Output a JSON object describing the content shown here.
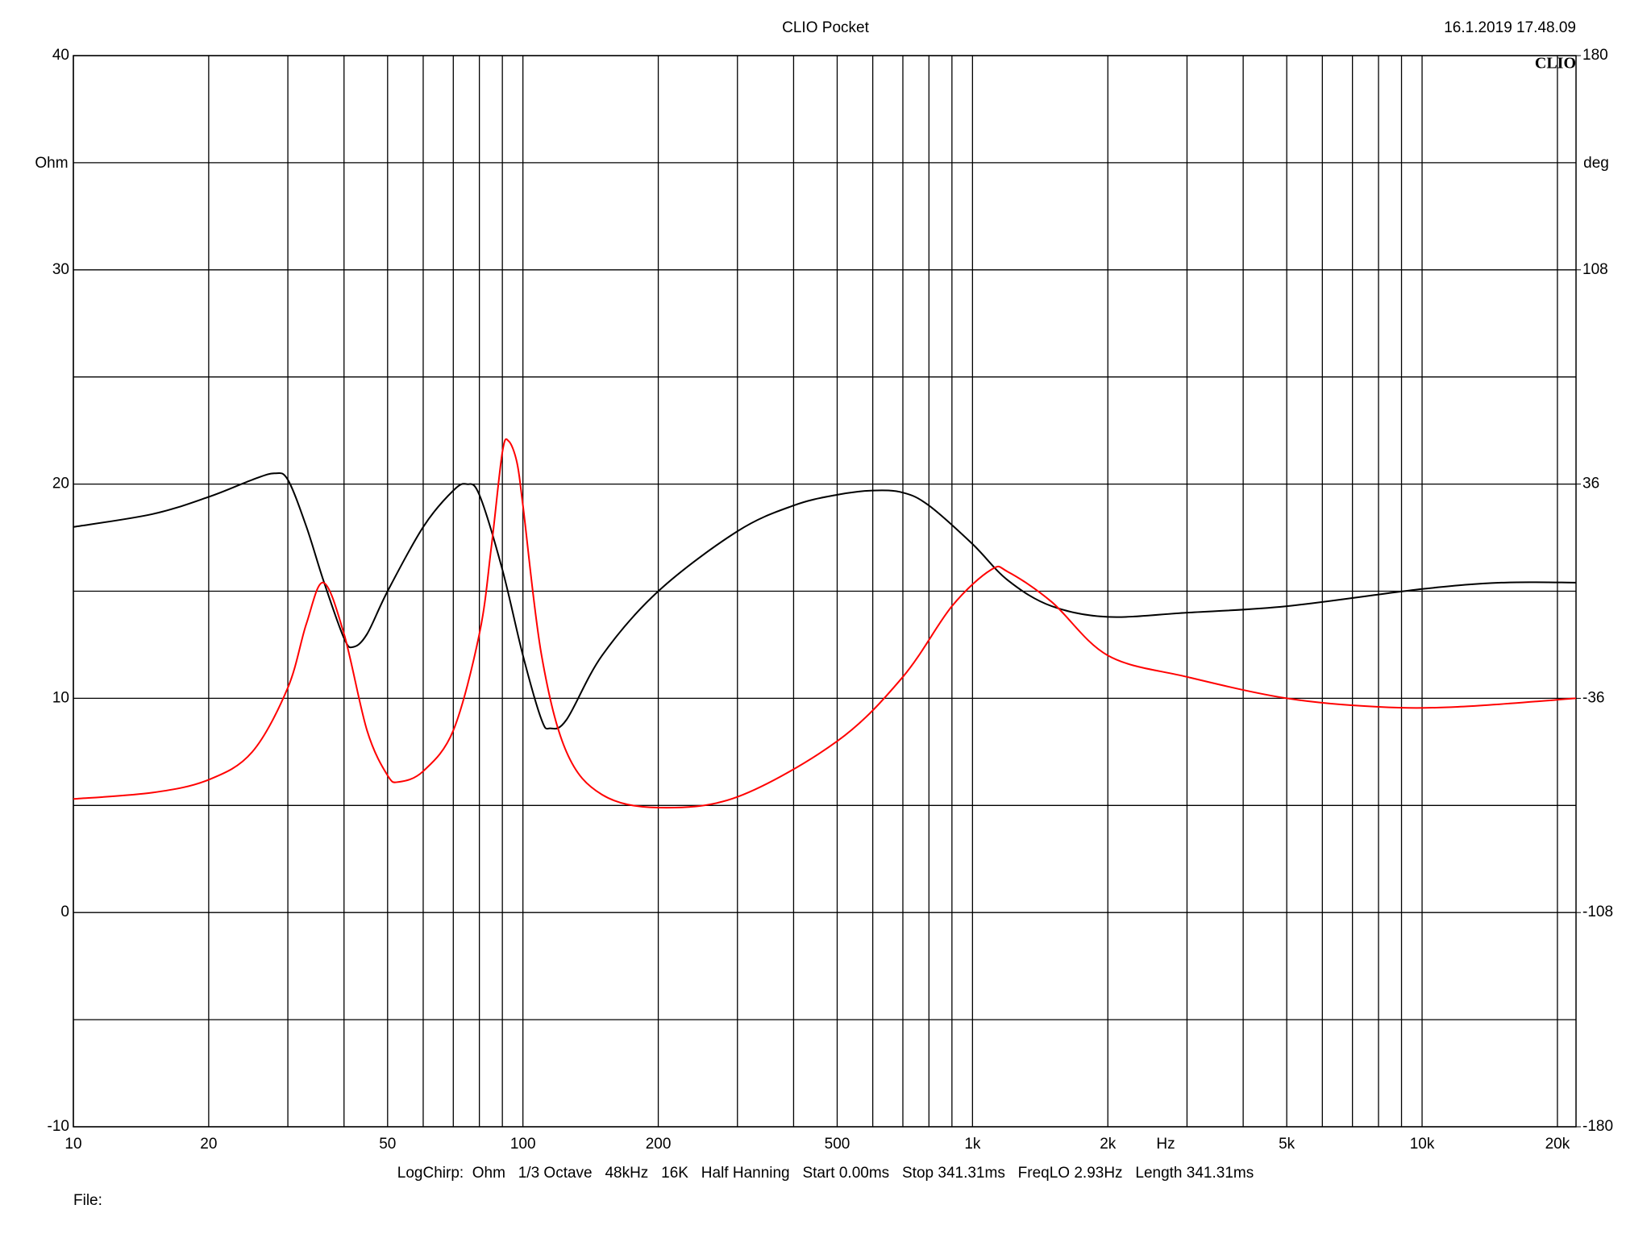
{
  "chart_data": {
    "type": "line",
    "title": "CLIO Pocket",
    "timestamp": "16.1.2019 17.48.09",
    "logo": "CLIO",
    "y_label": "Ohm",
    "y2_label": "deg",
    "x_label": "Hz",
    "footer": "LogChirp:  Ohm   1/3 Octave   48kHz   16K   Half Hanning   Start 0.00ms   Stop 341.31ms   FreqLO 2.93Hz   Length 341.31ms",
    "file_label": "File:",
    "xscale": "log",
    "xlim": [
      10,
      22000
    ],
    "xticks": [
      10,
      20,
      50,
      100,
      200,
      500,
      {
        "value": 1000,
        "label": "1k"
      },
      {
        "value": 2000,
        "label": "2k"
      },
      {
        "value": 5000,
        "label": "5k"
      },
      {
        "value": 10000,
        "label": "10k"
      },
      {
        "value": 20000,
        "label": "20k"
      }
    ],
    "xgrid_minor": [
      30,
      40,
      60,
      70,
      80,
      90,
      300,
      400,
      600,
      700,
      800,
      900,
      3000,
      4000,
      6000,
      7000,
      8000,
      9000
    ],
    "ylim": [
      -10,
      40
    ],
    "yticks": [
      -10,
      0,
      10,
      20,
      30,
      40
    ],
    "ygrid_minor": [
      -5,
      5,
      15,
      25,
      35
    ],
    "y2lim": [
      -180,
      180
    ],
    "y2ticks": [
      -180,
      -108,
      -36,
      36,
      108,
      180
    ],
    "grid": true,
    "series": [
      {
        "color": "#000000",
        "x": [
          10,
          15,
          20,
          25,
          28,
          30,
          33,
          36,
          40,
          42,
          45,
          50,
          60,
          70,
          75,
          80,
          90,
          100,
          110,
          115,
          125,
          150,
          200,
          300,
          400,
          500,
          600,
          700,
          800,
          1000,
          1200,
          1500,
          2000,
          3000,
          5000,
          10000,
          15000,
          22000
        ],
        "values": [
          18,
          18.6,
          19.4,
          20.2,
          20.5,
          20.2,
          18,
          15.5,
          12.8,
          12.4,
          13,
          15,
          18,
          19.7,
          20,
          19.5,
          16,
          12,
          9,
          8.6,
          9,
          12,
          15,
          17.8,
          19,
          19.5,
          19.7,
          19.6,
          19,
          17.2,
          15.5,
          14.3,
          13.8,
          14,
          14.3,
          15.1,
          15.4,
          15.4
        ]
      },
      {
        "color": "#ff0000",
        "x": [
          10,
          15,
          20,
          25,
          30,
          33,
          36,
          40,
          45,
          50,
          53,
          60,
          70,
          80,
          85,
          90,
          93,
          97,
          100,
          110,
          125,
          150,
          200,
          300,
          500,
          700,
          900,
          1100,
          1200,
          1500,
          2000,
          3000,
          5000,
          8000,
          12000,
          22000
        ],
        "values": [
          5.3,
          5.6,
          6.2,
          7.5,
          10.5,
          13.5,
          15.4,
          13,
          8.5,
          6.4,
          6.1,
          6.6,
          8.5,
          13,
          17,
          21.5,
          22,
          21,
          19,
          12,
          7.5,
          5.5,
          4.9,
          5.4,
          8,
          11,
          14.3,
          16,
          15.9,
          14.5,
          12,
          11,
          10,
          9.6,
          9.6,
          10
        ]
      }
    ]
  }
}
